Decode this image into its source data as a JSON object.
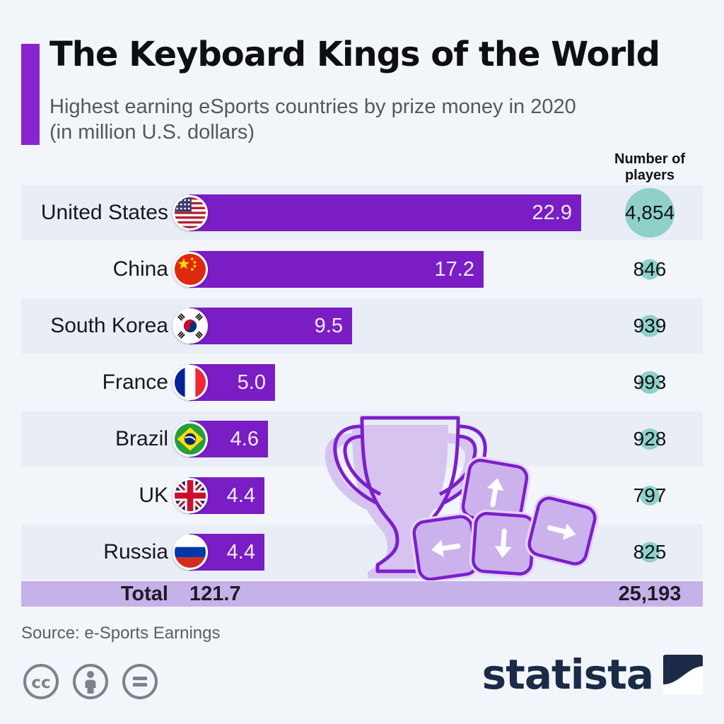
{
  "page": {
    "background": "#f2f5f9"
  },
  "header": {
    "title": "The Keyboard Kings of the World",
    "subtitle_lines": [
      "Highest earning eSports countries by prize money in 2020",
      "(in million U.S. dollars)"
    ],
    "players_column_header": "Number of players"
  },
  "chart_data": {
    "type": "bar",
    "orientation": "horizontal",
    "title": "The Keyboard Kings of the World",
    "subtitle": "Highest earning eSports countries by prize money in 2020 (in million U.S. dollars)",
    "unit": "million U.S. dollars",
    "categories": [
      "United States",
      "China",
      "South Korea",
      "France",
      "Brazil",
      "UK",
      "Russia"
    ],
    "series": [
      {
        "name": "Prize money (million U.S. dollars)",
        "values": [
          22.9,
          17.2,
          9.5,
          5.0,
          4.6,
          4.4,
          4.4
        ]
      },
      {
        "name": "Number of players",
        "values": [
          4854,
          846,
          939,
          993,
          928,
          797,
          825
        ]
      }
    ],
    "totals": {
      "label": "Total",
      "prize_money": 121.7,
      "prize_money_label": "121.7",
      "players": 25193,
      "players_label": "25,193"
    },
    "value_labels": "inside-bar-end",
    "legend": false,
    "xlim": [
      0,
      22.9
    ]
  },
  "rows": [
    {
      "country": "United States",
      "flag": "us",
      "value": 22.9,
      "value_label": "22.9",
      "players": 4854,
      "players_label": "4,854"
    },
    {
      "country": "China",
      "flag": "cn",
      "value": 17.2,
      "value_label": "17.2",
      "players": 846,
      "players_label": "846"
    },
    {
      "country": "South Korea",
      "flag": "kr",
      "value": 9.5,
      "value_label": "9.5",
      "players": 939,
      "players_label": "939"
    },
    {
      "country": "France",
      "flag": "fr",
      "value": 5.0,
      "value_label": "5.0",
      "players": 993,
      "players_label": "993"
    },
    {
      "country": "Brazil",
      "flag": "br",
      "value": 4.6,
      "value_label": "4.6",
      "players": 928,
      "players_label": "928"
    },
    {
      "country": "UK",
      "flag": "uk",
      "value": 4.4,
      "value_label": "4.4",
      "players": 797,
      "players_label": "797"
    },
    {
      "country": "Russia",
      "flag": "ru",
      "value": 4.4,
      "value_label": "4.4",
      "players": 825,
      "players_label": "825"
    }
  ],
  "footer": {
    "source": "Source: e-Sports Earnings",
    "license_icons": [
      "cc",
      "attribution",
      "no-derivatives"
    ],
    "brand": "statista"
  },
  "colors": {
    "bar": "#7a1dc4",
    "accent_bar": "#8a24d1",
    "total_row_bg": "#c6b2e9",
    "player_circle": "#8fd1ca",
    "row_stripe": "#e9edf6",
    "brand_navy": "#1b2b47",
    "graphic_purple": "#7d1fcb",
    "graphic_light": "#d7c3f0",
    "keycap_fill": "#ccb2ec"
  }
}
